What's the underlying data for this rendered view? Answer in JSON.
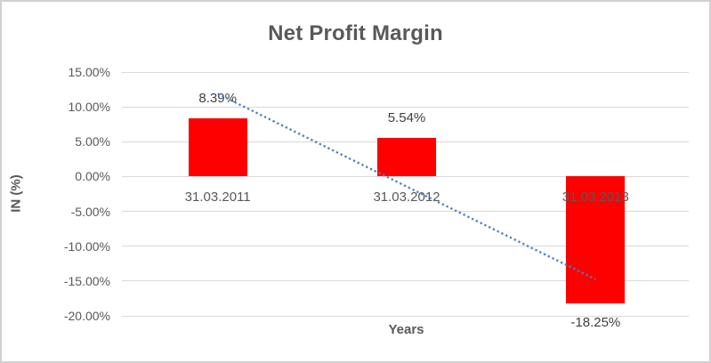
{
  "chart_data": {
    "type": "bar",
    "title": "Net Profit Margin",
    "xlabel": "Years",
    "ylabel": "IN (%)",
    "categories": [
      "31.03.2011",
      "31.03.2012",
      "31.03.2013"
    ],
    "values": [
      8.39,
      5.54,
      -18.25
    ],
    "data_labels": [
      "8.39%",
      "5.54%",
      "-18.25%"
    ],
    "series_name": "Net Profit Margin",
    "ylim": [
      -20,
      15
    ],
    "ytick_step": 5,
    "ytick_labels": [
      "15.00%",
      "10.00%",
      "5.00%",
      "0.00%",
      "-5.00%",
      "-10.00%",
      "-15.00%",
      "-20.00%"
    ],
    "grid": true,
    "legend": "none",
    "trendline": {
      "type": "linear",
      "style": "dotted",
      "fitted_endpoint_values": [
        11.88,
        -14.76
      ]
    },
    "colors": {
      "bar": "#ff0000",
      "trendline": "#4a7ebb",
      "gridline": "#d9d9d9",
      "text": "#595959",
      "data_label_text": "#404040",
      "border": "#d2d0d0",
      "background": "#ffffff"
    }
  }
}
